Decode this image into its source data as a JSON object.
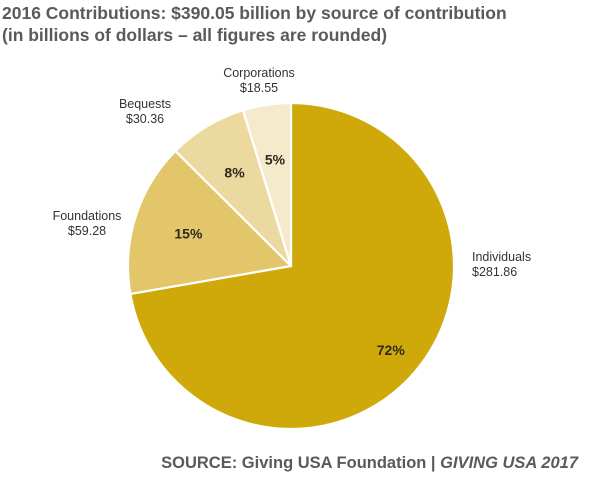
{
  "title_line1": "2016 Contributions: $390.05 billion by source of contribution",
  "title_line2": "(in billions of dollars – all figures are rounded)",
  "source": {
    "prefix": "SOURCE: Giving USA Foundation | ",
    "publication": "GIVING USA 2017"
  },
  "chart_data": {
    "type": "pie",
    "title": "2016 Contributions: $390.05 billion by source of contribution",
    "subtitle": "(in billions of dollars – all figures are rounded)",
    "start": "12 o'clock",
    "direction": "clockwise",
    "slices": [
      {
        "name": "Individuals",
        "value": 281.86,
        "value_label": "$281.86",
        "percent_label": "72%",
        "color": "#cfa90a"
      },
      {
        "name": "Foundations",
        "value": 59.28,
        "value_label": "$59.28",
        "percent_label": "15%",
        "color": "#e3c56a"
      },
      {
        "name": "Bequests",
        "value": 30.36,
        "value_label": "$30.36",
        "percent_label": "8%",
        "color": "#ecd9a0"
      },
      {
        "name": "Corporations",
        "value": 18.55,
        "value_label": "$18.55",
        "percent_label": "5%",
        "color": "#f5ebcc"
      }
    ]
  }
}
